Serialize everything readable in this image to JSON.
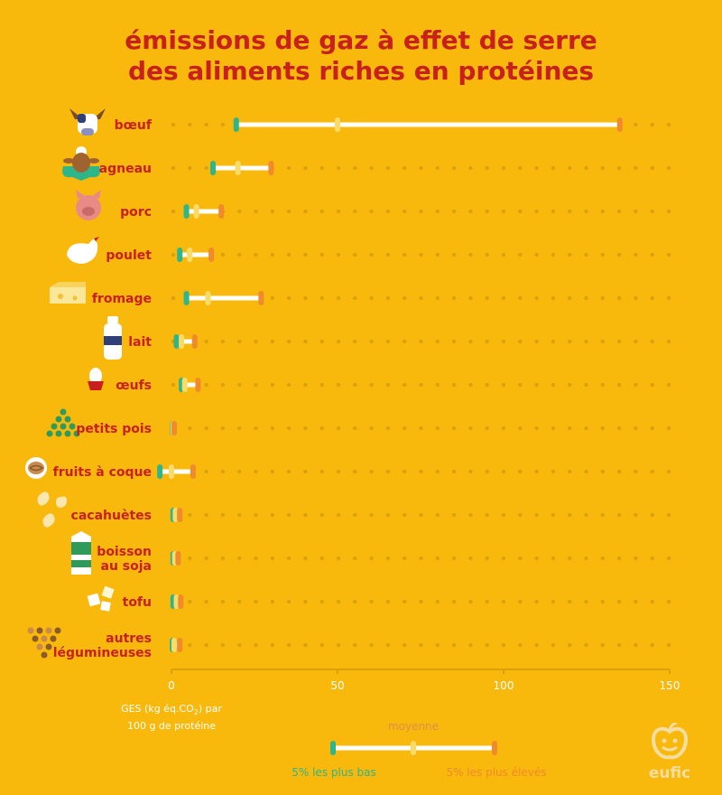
{
  "chart_data": {
    "type": "range",
    "title": [
      "émissions de gaz à effet de serre",
      "des aliments riches en protéines"
    ],
    "xlabel_line1": "GES (kg éq.CO",
    "xlabel_sub": "2",
    "xlabel_suffix": ") par",
    "xlabel_line2": "100 g de protéine",
    "xlim": [
      0,
      150
    ],
    "xticks": [
      0,
      50,
      100,
      150
    ],
    "tick_labels": [
      "0",
      "50",
      "100",
      "150"
    ],
    "series_labels": {
      "low": "5% les plus bas",
      "mean": "moyenne",
      "high": "5% les plus élevés"
    },
    "categories": [
      {
        "label": [
          "bœuf"
        ],
        "icon": "cow-icon",
        "low": 19.5,
        "mean": 50,
        "high": 135
      },
      {
        "label": [
          "agneau"
        ],
        "icon": "lamb-icon",
        "low": 12.5,
        "mean": 20,
        "high": 30
      },
      {
        "label": [
          "porc"
        ],
        "icon": "pig-icon",
        "low": 4.5,
        "mean": 7.5,
        "high": 15
      },
      {
        "label": [
          "poulet"
        ],
        "icon": "chicken-icon",
        "low": 2.5,
        "mean": 5.5,
        "high": 12
      },
      {
        "label": [
          "fromage"
        ],
        "icon": "cheese-icon",
        "low": 4.5,
        "mean": 11,
        "high": 27
      },
      {
        "label": [
          "lait"
        ],
        "icon": "milk-bottle-icon",
        "low": 1.5,
        "mean": 3,
        "high": 7
      },
      {
        "label": [
          "œufs"
        ],
        "icon": "egg-icon",
        "low": 3,
        "mean": 4,
        "high": 8
      },
      {
        "label": [
          "petits pois"
        ],
        "icon": "peas-icon",
        "low": 0.3,
        "mean": 0.5,
        "high": 0.8
      },
      {
        "label": [
          "fruits à coque"
        ],
        "icon": "nuts-icon",
        "low": -3.5,
        "mean": 0,
        "high": 6.5
      },
      {
        "label": [
          "cacahuètes"
        ],
        "icon": "peanut-icon",
        "low": 0.5,
        "mean": 1.2,
        "high": 2.5
      },
      {
        "label": [
          "boisson",
          "au soja"
        ],
        "icon": "soy-drink-icon",
        "low": 0.5,
        "mean": 1,
        "high": 2
      },
      {
        "label": [
          "tofu"
        ],
        "icon": "tofu-icon",
        "low": 0.5,
        "mean": 1.5,
        "high": 2.8
      },
      {
        "label": [
          "autres",
          "légumineuses"
        ],
        "icon": "legumes-icon",
        "low": 0.3,
        "mean": 0.8,
        "high": 2.5
      }
    ],
    "colors": {
      "low": "#2fb58a",
      "mean": "#f7dc6a",
      "high": "#f08a2a",
      "bar": "#ffffff",
      "dots": "#dba10a",
      "title": "#c8201d"
    }
  },
  "branding": {
    "logo_text": "eufic"
  }
}
